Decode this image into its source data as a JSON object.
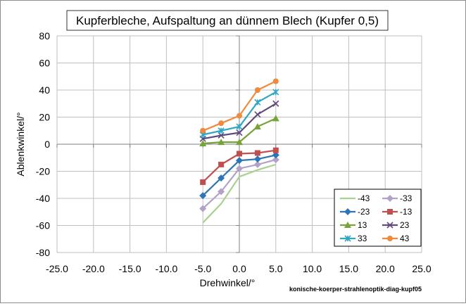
{
  "chart_data": {
    "type": "line",
    "title": "Kupferbleche, Aufspaltung an dünnem Blech (Kupfer 0,5)",
    "xlabel": "Drehwinkel/°",
    "ylabel": "Ablenkwinkel/°",
    "footnote": "konische-koerper-strahlenoptik-diag-kupf05",
    "xlim": [
      -25,
      25
    ],
    "ylim": [
      -80,
      80
    ],
    "xticks": [
      "-25.0",
      "-20.0",
      "-15.0",
      "-10.0",
      "-5.0",
      "0.0",
      "5.0",
      "10.0",
      "15.0",
      "20.0",
      "25.0"
    ],
    "yticks": [
      "-80",
      "-60",
      "-40",
      "-20",
      "0",
      "20",
      "40",
      "60",
      "80"
    ],
    "grid": true,
    "legend_position": "bottom-right",
    "x": [
      -5,
      -2.5,
      0,
      2.5,
      5
    ],
    "series": [
      {
        "name": "-43",
        "color": "#a9d18e",
        "marker": "none",
        "values": [
          -58,
          -44,
          -24,
          -19,
          -15
        ]
      },
      {
        "name": "-33",
        "color": "#b3a2c7",
        "marker": "diamond",
        "values": [
          -47.5,
          -35,
          -18,
          -15,
          -11.5
        ]
      },
      {
        "name": "-23",
        "color": "#2e75b6",
        "marker": "diamond",
        "values": [
          -38,
          -25,
          -12,
          -11,
          -8
        ]
      },
      {
        "name": "-13",
        "color": "#c0504d",
        "marker": "square",
        "values": [
          -28,
          -15,
          -7,
          -6.5,
          -4.5
        ]
      },
      {
        "name": "13",
        "color": "#77a33a",
        "marker": "triangle",
        "values": [
          0.5,
          1.5,
          1.5,
          13,
          19
        ]
      },
      {
        "name": "23",
        "color": "#604a7b",
        "marker": "x",
        "values": [
          4,
          6.5,
          8.5,
          22,
          30
        ]
      },
      {
        "name": "33",
        "color": "#31a6c4",
        "marker": "star",
        "values": [
          7,
          10,
          13,
          31,
          38.5
        ]
      },
      {
        "name": "43",
        "color": "#f08a3c",
        "marker": "circle",
        "values": [
          10,
          15.5,
          21,
          40,
          46.5
        ]
      }
    ]
  }
}
